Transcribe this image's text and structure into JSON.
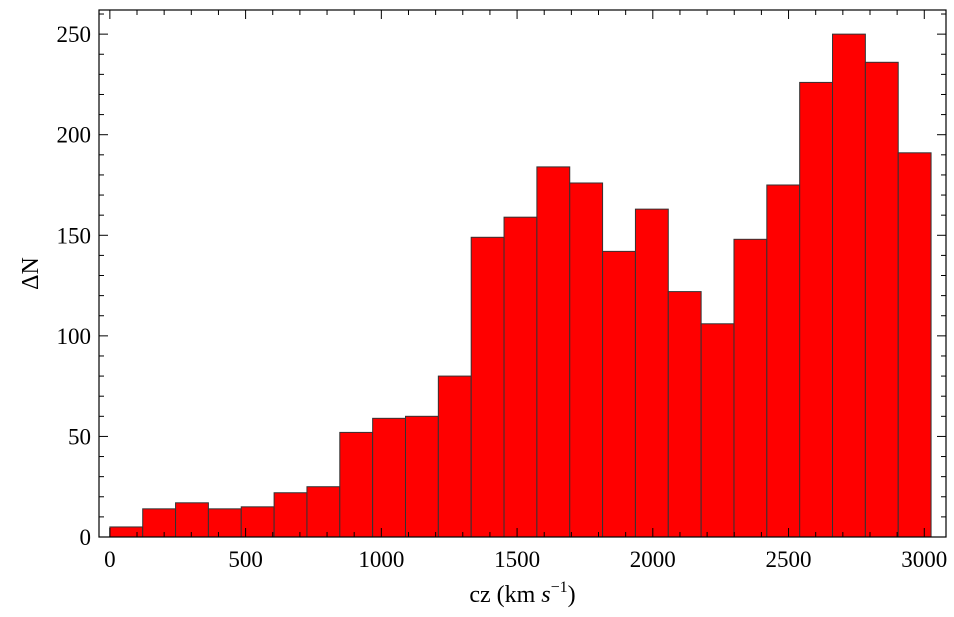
{
  "chart_data": {
    "type": "bar",
    "subtype": "histogram",
    "bin_width": 121,
    "bin_starts": [
      0,
      121,
      242,
      363,
      484,
      605,
      726,
      847,
      968,
      1089,
      1210,
      1331,
      1452,
      1573,
      1694,
      1815,
      1936,
      2057,
      2178,
      2299,
      2420,
      2541,
      2662,
      2783,
      2904
    ],
    "values": [
      5,
      14,
      17,
      14,
      15,
      22,
      25,
      52,
      59,
      60,
      80,
      149,
      159,
      184,
      176,
      142,
      163,
      122,
      106,
      148,
      175,
      226,
      250,
      236,
      191
    ],
    "bar_color": "#ff0000",
    "xlabel": "cz (km s⁻¹)",
    "xlabel_main": "cz (km ",
    "xlabel_unit": "s",
    "xlabel_exp": "−1",
    "xlabel_close": ")",
    "ylabel": "ΔN",
    "xlim": [
      -40,
      3080
    ],
    "ylim": [
      0,
      262
    ],
    "xticks": [
      0,
      500,
      1000,
      1500,
      2000,
      2500,
      3000
    ],
    "yticks": [
      0,
      50,
      100,
      150,
      200,
      250
    ],
    "xtick_labels": [
      "0",
      "500",
      "1000",
      "1500",
      "2000",
      "2500",
      "3000"
    ],
    "ytick_labels": [
      "0",
      "50",
      "100",
      "150",
      "200",
      "250"
    ],
    "grid": false,
    "legend": "none"
  }
}
